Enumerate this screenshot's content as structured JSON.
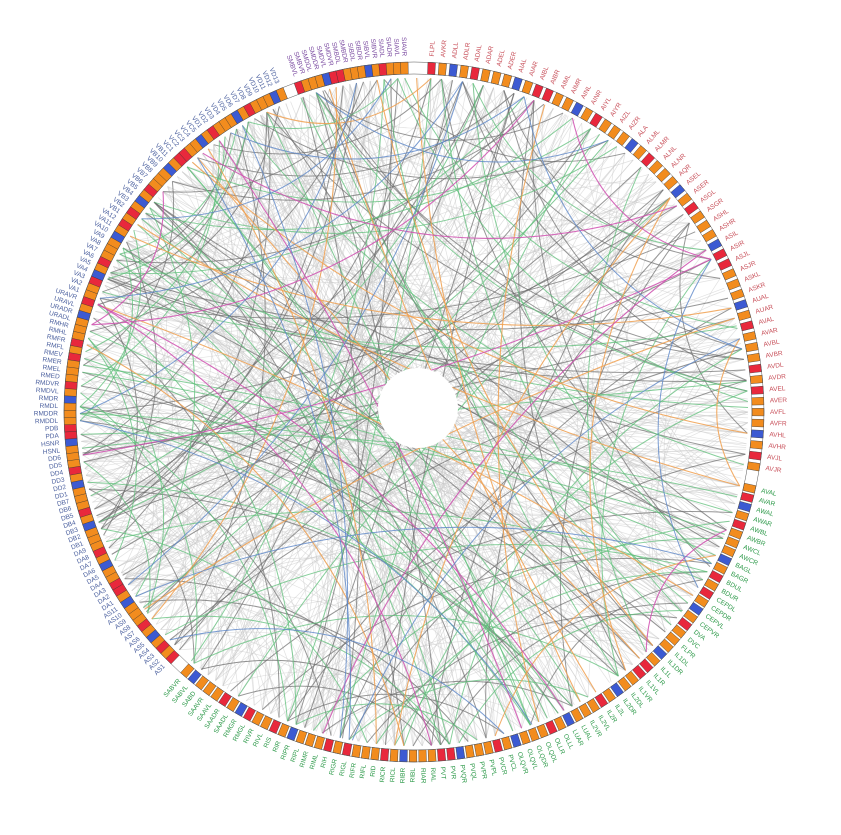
{
  "diagram": {
    "type": "chord",
    "colors": {
      "background": "#ffffff",
      "chord_default": "#c8c8c8",
      "chord_dark": "#6b6b6b",
      "chord_green": "#5fbf7a",
      "chord_orange": "#f0a050",
      "chord_magenta": "#d050b0",
      "chord_blue": "#5b86c8",
      "segment_orange": "#f28c1e",
      "segment_red": "#e8283c",
      "segment_blue": "#3c5ad2",
      "label_blue": "#4a5f9e",
      "label_red": "#c8505a",
      "label_green": "#2e9a4a",
      "label_purple": "#7a4aa0"
    },
    "groups": [
      {
        "name": "pink",
        "color": "#c8505a",
        "labels": [
          "FLPL",
          "AVKR",
          "ADLL",
          "ADLR",
          "ADAL",
          "ADAR",
          "ADEL",
          "ADER",
          "AIAL",
          "AIAR",
          "AIBL",
          "AIBR",
          "AIML",
          "AIMR",
          "AINL",
          "AINR",
          "AIYL",
          "AIYR",
          "AIZL",
          "AIZR",
          "ALA",
          "ALML",
          "ALMR",
          "ALNL",
          "ALNR",
          "AQR",
          "ASEL",
          "ASER",
          "ASGL",
          "ASGR",
          "ASHL",
          "ASHR",
          "ASIL",
          "ASIR",
          "ASJL",
          "ASJR",
          "ASKL",
          "ASKR",
          "AUAL",
          "AUAR",
          "AVAL",
          "AVAR",
          "AVBL",
          "AVBR",
          "AVDL",
          "AVDR",
          "AVEL",
          "AVER",
          "AVFL",
          "AVFR",
          "AVHL",
          "AVHR",
          "AVJL",
          "AVJR"
        ]
      },
      {
        "name": "green",
        "color": "#2e9a4a",
        "labels": [
          "AVAL",
          "AVAR",
          "AWAL",
          "AWAR",
          "AWBL",
          "AWBR",
          "AWCL",
          "AWCR",
          "BAGL",
          "BAGR",
          "BDUL",
          "BDUR",
          "CEPDL",
          "CEPDR",
          "CEPVL",
          "CEPVR",
          "DVA",
          "DVC",
          "FLPR",
          "IL1DL",
          "IL1DR",
          "IL1L",
          "IL1R",
          "IL1VL",
          "IL1VR",
          "IL2DL",
          "IL2DR",
          "IL2L",
          "IL2R",
          "IL2VL",
          "IL2VR",
          "LUAL",
          "LUAR",
          "OLLL",
          "OLLR",
          "OLQDL",
          "OLQDR",
          "OLQVL",
          "OLQVR",
          "PVCL",
          "PVCR",
          "PVPL",
          "PVPR",
          "PVQL",
          "PVQR",
          "PVR",
          "PVT",
          "RIAL",
          "RIAR",
          "RIBL",
          "RIBR",
          "RICL",
          "RICR",
          "RID",
          "RIFL",
          "RIFR",
          "RIGL",
          "RIGR",
          "RIH",
          "RIML",
          "RIMR",
          "RIPL",
          "RIPR",
          "RIR",
          "RIS",
          "RIVL",
          "RIVR",
          "RMGL",
          "RMGR",
          "SAADL",
          "SAADR",
          "SAAVL",
          "SAAVR",
          "SABD",
          "SABVL",
          "SABVR"
        ]
      },
      {
        "name": "blue",
        "color": "#4a5f9e",
        "labels": [
          "AS1",
          "AS2",
          "AS3",
          "AS4",
          "AS5",
          "AS6",
          "AS7",
          "AS8",
          "AS9",
          "AS10",
          "AS11",
          "DA1",
          "DA2",
          "DA3",
          "DA4",
          "DA5",
          "DA6",
          "DA7",
          "DA8",
          "DA9",
          "DB1",
          "DB2",
          "DB3",
          "DB4",
          "DB5",
          "DB6",
          "DB7",
          "DD1",
          "DD2",
          "DD3",
          "DD4",
          "DD5",
          "DD6",
          "HSNL",
          "HSNR",
          "PDA",
          "PDB",
          "RMDDL",
          "RMDDR",
          "RMDL",
          "RMDR",
          "RMDVL",
          "RMDVR",
          "RMED",
          "RMEL",
          "RMER",
          "RMEV",
          "RMFL",
          "RMFR",
          "RMHL",
          "RMHR",
          "URADL",
          "URADR",
          "URAVL",
          "URAVR",
          "VA1",
          "VA2",
          "VA3",
          "VA4",
          "VA5",
          "VA6",
          "VA7",
          "VA8",
          "VA9",
          "VA10",
          "VA11",
          "VA12",
          "VB1",
          "VB2",
          "VB3",
          "VB4",
          "VB5",
          "VB6",
          "VB7",
          "VB8",
          "VB9",
          "VB10",
          "VB11",
          "VC1",
          "VC2",
          "VC3",
          "VC4",
          "VC5",
          "VD1",
          "VD2",
          "VD3",
          "VD4",
          "VD5",
          "VD6",
          "VD7",
          "VD8",
          "VD9",
          "VD10",
          "VD11",
          "VD12",
          "VD13"
        ]
      },
      {
        "name": "purple",
        "color": "#7a4aa0",
        "labels": [
          "SMBVL",
          "SMBVR",
          "SMDDL",
          "SMDDR",
          "SMDVL",
          "SMDVR",
          "SMBDL",
          "SMBDR",
          "SIBDL",
          "SIBDR",
          "SIBVL",
          "SIBVR",
          "SIADL",
          "SIADR",
          "SIAVL",
          "SIAVR"
        ]
      }
    ]
  }
}
